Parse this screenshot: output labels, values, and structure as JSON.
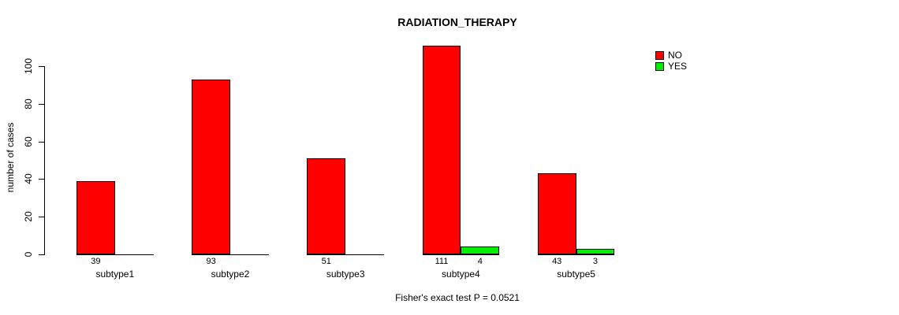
{
  "title": "RADIATION_THERAPY",
  "footer": "Fisher's exact test P = 0.0521",
  "legend": {
    "items": [
      {
        "label": "NO",
        "color": "#FF0000"
      },
      {
        "label": "YES",
        "color": "#00EE00"
      }
    ]
  },
  "chart_data": {
    "type": "bar",
    "title": "RADIATION_THERAPY",
    "xlabel": "",
    "ylabel": "number of cases",
    "categories": [
      "subtype1",
      "subtype2",
      "subtype3",
      "subtype4",
      "subtype5"
    ],
    "series": [
      {
        "name": "NO",
        "color": "#FF0000",
        "values": [
          39,
          93,
          51,
          111,
          43
        ]
      },
      {
        "name": "YES",
        "color": "#00EE00",
        "values": [
          0,
          0,
          0,
          4,
          3
        ]
      }
    ],
    "bar_value_labels": [
      {
        "category": "subtype1",
        "NO": 39,
        "YES": null
      },
      {
        "category": "subtype2",
        "NO": 93,
        "YES": null
      },
      {
        "category": "subtype3",
        "NO": 51,
        "YES": null
      },
      {
        "category": "subtype4",
        "NO": 111,
        "YES": 4
      },
      {
        "category": "subtype5",
        "NO": 43,
        "YES": 3
      }
    ],
    "yticks": [
      0,
      20,
      40,
      60,
      80,
      100
    ],
    "ylim": [
      0,
      100
    ],
    "grid": false,
    "legend_position": "top-right",
    "annotation": "Fisher's exact test P = 0.0521"
  }
}
